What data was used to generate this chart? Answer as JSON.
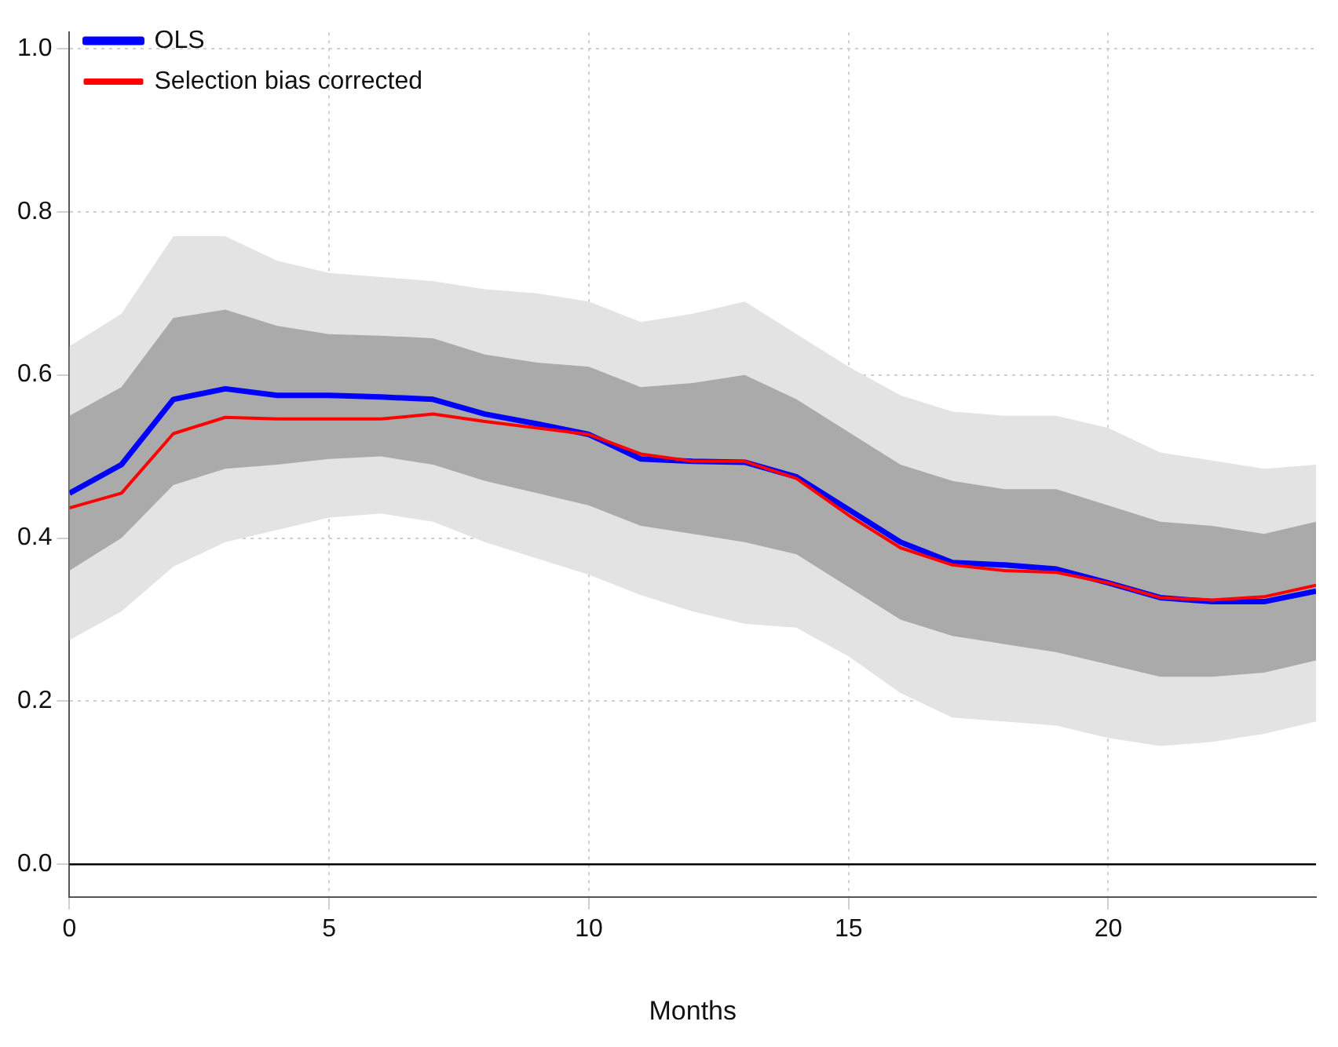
{
  "chart_data": {
    "type": "line",
    "xlabel": "Months",
    "x": [
      0,
      1,
      2,
      3,
      4,
      5,
      6,
      7,
      8,
      9,
      10,
      11,
      12,
      13,
      14,
      15,
      16,
      17,
      18,
      19,
      20,
      21,
      22,
      23,
      24
    ],
    "series": [
      {
        "name": "OLS",
        "color": "#0000ff",
        "values": [
          0.455,
          0.49,
          0.57,
          0.583,
          0.575,
          0.575,
          0.573,
          0.57,
          0.552,
          0.54,
          0.527,
          0.497,
          0.494,
          0.493,
          0.475,
          0.435,
          0.395,
          0.37,
          0.367,
          0.362,
          0.345,
          0.327,
          0.322,
          0.322,
          0.335
        ],
        "lower": [
          0.275,
          0.31,
          0.365,
          0.395,
          0.41,
          0.425,
          0.43,
          0.42,
          0.395,
          0.375,
          0.355,
          0.33,
          0.31,
          0.295,
          0.29,
          0.255,
          0.21,
          0.18,
          0.175,
          0.17,
          0.155,
          0.145,
          0.15,
          0.16,
          0.175
        ],
        "upper": [
          0.635,
          0.675,
          0.77,
          0.77,
          0.74,
          0.725,
          0.72,
          0.715,
          0.705,
          0.7,
          0.69,
          0.665,
          0.675,
          0.69,
          0.65,
          0.61,
          0.575,
          0.555,
          0.55,
          0.55,
          0.535,
          0.505,
          0.495,
          0.485,
          0.49
        ]
      },
      {
        "name": "Selection bias corrected",
        "color": "#ff0000",
        "values": [
          0.437,
          0.455,
          0.528,
          0.548,
          0.546,
          0.546,
          0.546,
          0.552,
          0.543,
          0.535,
          0.527,
          0.503,
          0.494,
          0.494,
          0.473,
          0.428,
          0.388,
          0.367,
          0.36,
          0.358,
          0.345,
          0.327,
          0.324,
          0.328,
          0.342
        ],
        "lower": [
          0.36,
          0.4,
          0.465,
          0.485,
          0.49,
          0.497,
          0.5,
          0.49,
          0.47,
          0.455,
          0.44,
          0.415,
          0.405,
          0.395,
          0.38,
          0.34,
          0.3,
          0.28,
          0.27,
          0.26,
          0.245,
          0.23,
          0.23,
          0.235,
          0.25
        ],
        "upper": [
          0.55,
          0.585,
          0.67,
          0.68,
          0.66,
          0.65,
          0.648,
          0.645,
          0.625,
          0.615,
          0.61,
          0.585,
          0.59,
          0.6,
          0.57,
          0.53,
          0.49,
          0.47,
          0.46,
          0.46,
          0.44,
          0.42,
          0.415,
          0.405,
          0.42
        ]
      }
    ],
    "xlim": [
      0,
      24
    ],
    "xticks": [
      0,
      5,
      10,
      15,
      20
    ],
    "ylim": [
      -0.04,
      1.02
    ],
    "yticks": [
      {
        "value": 0,
        "label": "0.0"
      },
      0.2,
      0.4,
      0.6,
      0.8,
      {
        "value": 1,
        "label": "1.0"
      }
    ],
    "ref_lines": [
      {
        "axis": "y",
        "value": 0,
        "color": "#000000"
      }
    ],
    "grid": true,
    "legend": "top left",
    "marker": "none",
    "line_style": "solid"
  }
}
